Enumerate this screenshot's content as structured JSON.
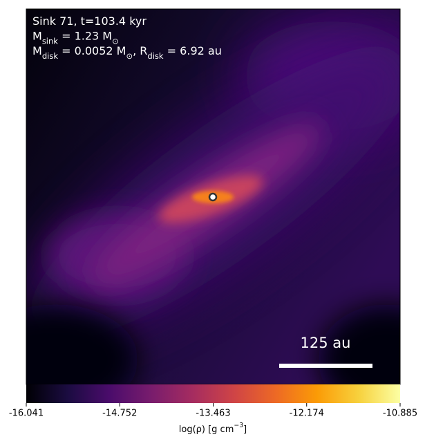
{
  "chart_data": {
    "type": "image",
    "annotations": [
      [
        {
          "text": "Sink 71, t=103.4 kyr"
        }
      ],
      [
        {
          "text": "M"
        },
        {
          "text": "sink",
          "sub": true
        },
        {
          "text": " = 1.23 M"
        },
        {
          "text": "⊙",
          "sub": true
        }
      ],
      [
        {
          "text": "M"
        },
        {
          "text": "disk",
          "sub": true
        },
        {
          "text": " = 0.0052 M"
        },
        {
          "text": "⊙",
          "sub": true
        },
        {
          "text": ", R"
        },
        {
          "text": "disk",
          "sub": true
        },
        {
          "text": " = 6.92 au"
        }
      ]
    ],
    "scale_bar": {
      "label": "125 au"
    },
    "colorbar": {
      "colormap": "inferno",
      "clim": [
        -16.041,
        -10.885
      ],
      "ticks": [
        -16.041,
        -14.752,
        -13.463,
        -12.174,
        -10.885
      ],
      "label": [
        {
          "text": "log(ρ) [g cm"
        },
        {
          "text": "−3",
          "sup": true
        },
        {
          "text": "]"
        }
      ]
    }
  }
}
